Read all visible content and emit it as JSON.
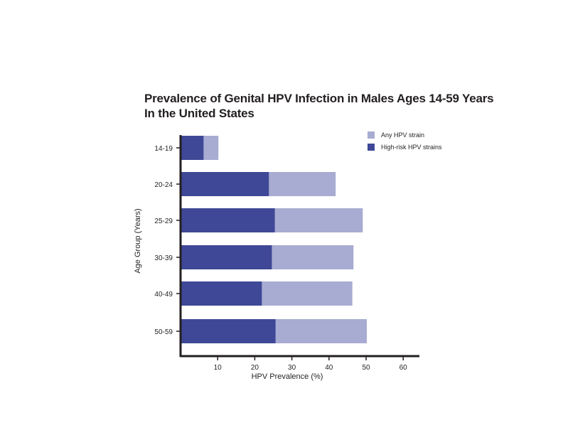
{
  "chart_data": {
    "type": "bar",
    "orientation": "horizontal",
    "stacked": "overlay",
    "title_lines": [
      "Prevalence of Genital HPV Infection in Males Ages 14-59 Years",
      "In the United States"
    ],
    "xlabel": "HPV Prevalence (%)",
    "ylabel": "Age Group (Years)",
    "xlim": [
      0,
      65
    ],
    "xticks": [
      10,
      20,
      30,
      40,
      50,
      60
    ],
    "categories": [
      "14-19",
      "20-24",
      "25-29",
      "30-39",
      "40-49",
      "50-59"
    ],
    "series": [
      {
        "name": "Any HPV strain",
        "color": "#a8acd2",
        "values": [
          10.2,
          41.8,
          49.1,
          46.6,
          46.3,
          50.2
        ]
      },
      {
        "name": "High-risk HPV strains",
        "color": "#3f4897",
        "values": [
          6.2,
          23.8,
          25.4,
          24.6,
          21.9,
          25.6
        ]
      }
    ],
    "grid": false,
    "legend_position": "top-right"
  }
}
